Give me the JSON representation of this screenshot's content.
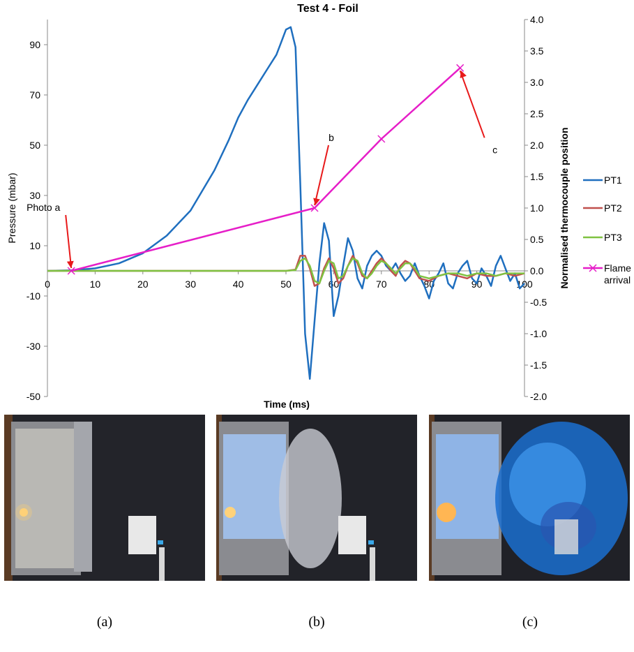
{
  "chart_data": {
    "type": "line",
    "title": "Test 4 - Foil",
    "xlabel": "Time (ms)",
    "ylabel": "Pressure (mbar)",
    "y2label": "Normalised thermocouple position",
    "xlim": [
      0,
      100
    ],
    "ylim": [
      -50,
      100
    ],
    "y2lim": [
      -2.0,
      4.0
    ],
    "x_ticks": [
      "0",
      "10",
      "20",
      "30",
      "40",
      "50",
      "60",
      "70",
      "80",
      "90",
      "100"
    ],
    "y_ticks": [
      "90",
      "70",
      "50",
      "30",
      "10",
      "-10",
      "-30",
      "-50"
    ],
    "y2_ticks": [
      "4.0",
      "3.5",
      "3.0",
      "2.5",
      "2.0",
      "1.5",
      "1.0",
      "0.5",
      "0.0",
      "-0.5",
      "-1.0",
      "-1.5",
      "-2.0"
    ],
    "legend_position": "right",
    "series": [
      {
        "name": "PT1",
        "axis": "left",
        "color": "#1f6fbf",
        "x": [
          0,
          5,
          10,
          15,
          20,
          25,
          30,
          35,
          38,
          40,
          42,
          44,
          46,
          48,
          49,
          50,
          51,
          52,
          53,
          54,
          55,
          56,
          57,
          58,
          59,
          60,
          61,
          62,
          63,
          64,
          65,
          66,
          67,
          68,
          69,
          70,
          71,
          72,
          73,
          74,
          75,
          76,
          77,
          78,
          79,
          80,
          81,
          82,
          83,
          84,
          85,
          86,
          87,
          88,
          89,
          90,
          91,
          92,
          93,
          94,
          95,
          96,
          97,
          98,
          99,
          100
        ],
        "y": [
          0,
          0.2,
          1,
          3,
          7,
          14,
          24,
          40,
          52,
          61,
          68,
          74,
          80,
          86,
          91,
          96,
          97,
          89,
          35,
          -25,
          -43,
          -20,
          3,
          19,
          12,
          -18,
          -10,
          2,
          13,
          8,
          -3,
          -7,
          2,
          6,
          8,
          6,
          2,
          0,
          3,
          -1,
          -4,
          -2,
          3,
          -2,
          -6,
          -11,
          -4,
          -1,
          3,
          -5,
          -7,
          -1,
          2,
          4,
          -3,
          -5,
          1,
          -2,
          -6,
          2,
          6,
          1,
          -4,
          -1,
          -7,
          -5
        ]
      },
      {
        "name": "PT2",
        "axis": "left",
        "color": "#c0504d",
        "x": [
          0,
          10,
          20,
          30,
          40,
          50,
          52,
          53,
          54,
          55,
          56,
          57,
          58,
          59,
          60,
          61,
          62,
          63,
          64,
          65,
          66,
          67,
          68,
          69,
          70,
          71,
          72,
          73,
          74,
          75,
          76,
          77,
          78,
          80,
          82,
          84,
          86,
          88,
          90,
          92,
          94,
          96,
          98,
          100
        ],
        "y": [
          0,
          0,
          0,
          0,
          0,
          0,
          0.5,
          6,
          6,
          1,
          -6,
          -5,
          1,
          5,
          1,
          -5,
          -3,
          2,
          6,
          3,
          -2,
          -3,
          0,
          3,
          5,
          3,
          0,
          -2,
          2,
          4,
          3,
          0,
          -3,
          -4,
          -2,
          -1,
          -2,
          -3,
          -1,
          -2,
          -2,
          -1,
          -2,
          -1
        ]
      },
      {
        "name": "PT3",
        "axis": "left",
        "color": "#7fc241",
        "x": [
          0,
          10,
          20,
          30,
          40,
          50,
          52,
          53,
          54,
          55,
          56,
          57,
          58,
          59,
          60,
          61,
          62,
          63,
          64,
          65,
          66,
          67,
          68,
          69,
          70,
          71,
          72,
          73,
          74,
          75,
          76,
          77,
          78,
          80,
          82,
          84,
          86,
          88,
          90,
          92,
          94,
          96,
          98,
          100
        ],
        "y": [
          0,
          0,
          0,
          0,
          0,
          0,
          0.3,
          4,
          5,
          2,
          -4,
          -5,
          0,
          4,
          3,
          -3,
          -2,
          2,
          5,
          4,
          -1,
          -3,
          -1,
          2,
          4,
          3,
          1,
          -1,
          1,
          3,
          3,
          1,
          -2,
          -3,
          -2,
          -1,
          -1,
          -2,
          -1,
          -1,
          -2,
          -1,
          -1,
          -1
        ]
      },
      {
        "name": "Flame arrival",
        "axis": "right",
        "color": "#e61ec8",
        "marker": "x",
        "x": [
          5,
          56,
          70,
          86.5
        ],
        "y": [
          0.0,
          1.0,
          2.1,
          3.23
        ]
      }
    ],
    "annotations": [
      {
        "text": "Photo a",
        "x": 5,
        "y2": 0.0
      },
      {
        "text": "b",
        "x": 56,
        "y2": 1.0
      },
      {
        "text": "c",
        "x": 86.5,
        "y2": 3.23
      }
    ]
  },
  "photos": {
    "captions": [
      "(a)",
      "(b)",
      "(c)"
    ]
  }
}
